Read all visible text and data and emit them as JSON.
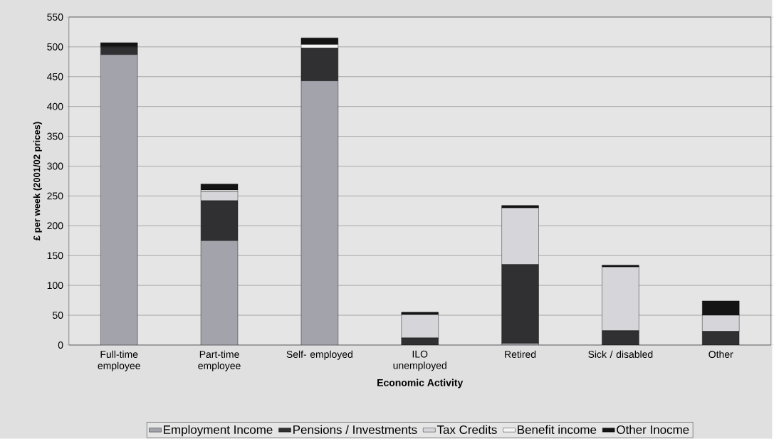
{
  "chart_data": {
    "type": "bar",
    "stacked": true,
    "xlabel": "Economic Activity",
    "ylabel": "£ per week (2001/02 prices)",
    "categories": [
      "Full-time employee",
      "Part-time employee",
      "Self- employed",
      "ILO unemployed",
      "Retired",
      "Sick / disabled",
      "Other"
    ],
    "series": [
      {
        "name": "Employment Income",
        "color": "#a3a3ab",
        "values": [
          487,
          175,
          443,
          0,
          3,
          0,
          0
        ]
      },
      {
        "name": "Pensions / Investments",
        "color": "#303033",
        "values": [
          13,
          67,
          55,
          12,
          132,
          24,
          23
        ]
      },
      {
        "name": "Tax Credits",
        "color": "#d6d6da",
        "values": [
          0,
          15,
          0,
          39,
          95,
          107,
          27
        ]
      },
      {
        "name": "Benefit income",
        "color": "#f4f4f4",
        "values": [
          0,
          3,
          6,
          0,
          0,
          0,
          0
        ]
      },
      {
        "name": "Other Inocme",
        "color": "#141414",
        "values": [
          7,
          10,
          11,
          4,
          4,
          3,
          24
        ]
      }
    ],
    "ylim": [
      0,
      550
    ],
    "yticks": [
      0,
      50,
      100,
      150,
      200,
      250,
      300,
      350,
      400,
      450,
      500,
      550
    ],
    "grid": "y",
    "legend": "bottom"
  }
}
